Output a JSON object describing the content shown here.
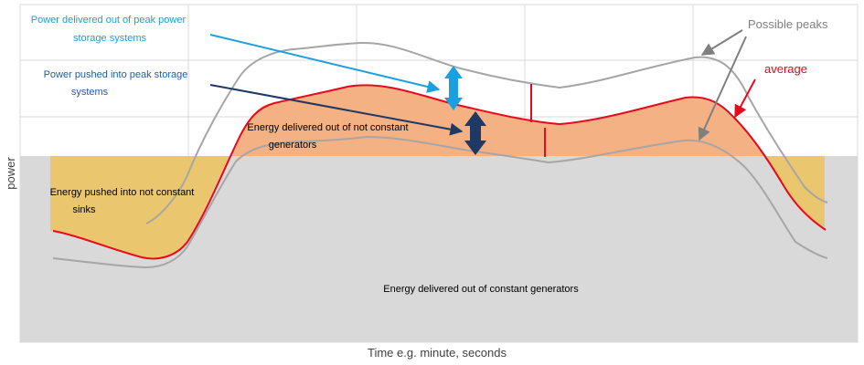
{
  "axes": {
    "x_label": "Time e.g. minute, seconds",
    "y_label": "power"
  },
  "labels": {
    "peak_out": [
      "Power delivered out of peak power",
      "storage systems"
    ],
    "peak_in": [
      "Power pushed  into  peak storage",
      "systems"
    ],
    "not_constant_generators": [
      "Energy delivered  out of not constant",
      "generators"
    ],
    "not_constant_sinks": [
      "Energy pushed into not constant",
      "sinks"
    ],
    "constant_generators": "Energy delivered out of constant generators",
    "possible_peaks": "Possible peaks",
    "average": "average"
  },
  "colors": {
    "constant_fill": "#d9d9d9",
    "generator_fill": "#f4b183",
    "sink_fill": "#ecc35a",
    "average_line": "#e8091c",
    "peak_line": "#a6a6a6",
    "peak_out_color": "#1aa0e0",
    "peak_in_color": "#1f3864",
    "grid": "#d9d9d9"
  }
}
